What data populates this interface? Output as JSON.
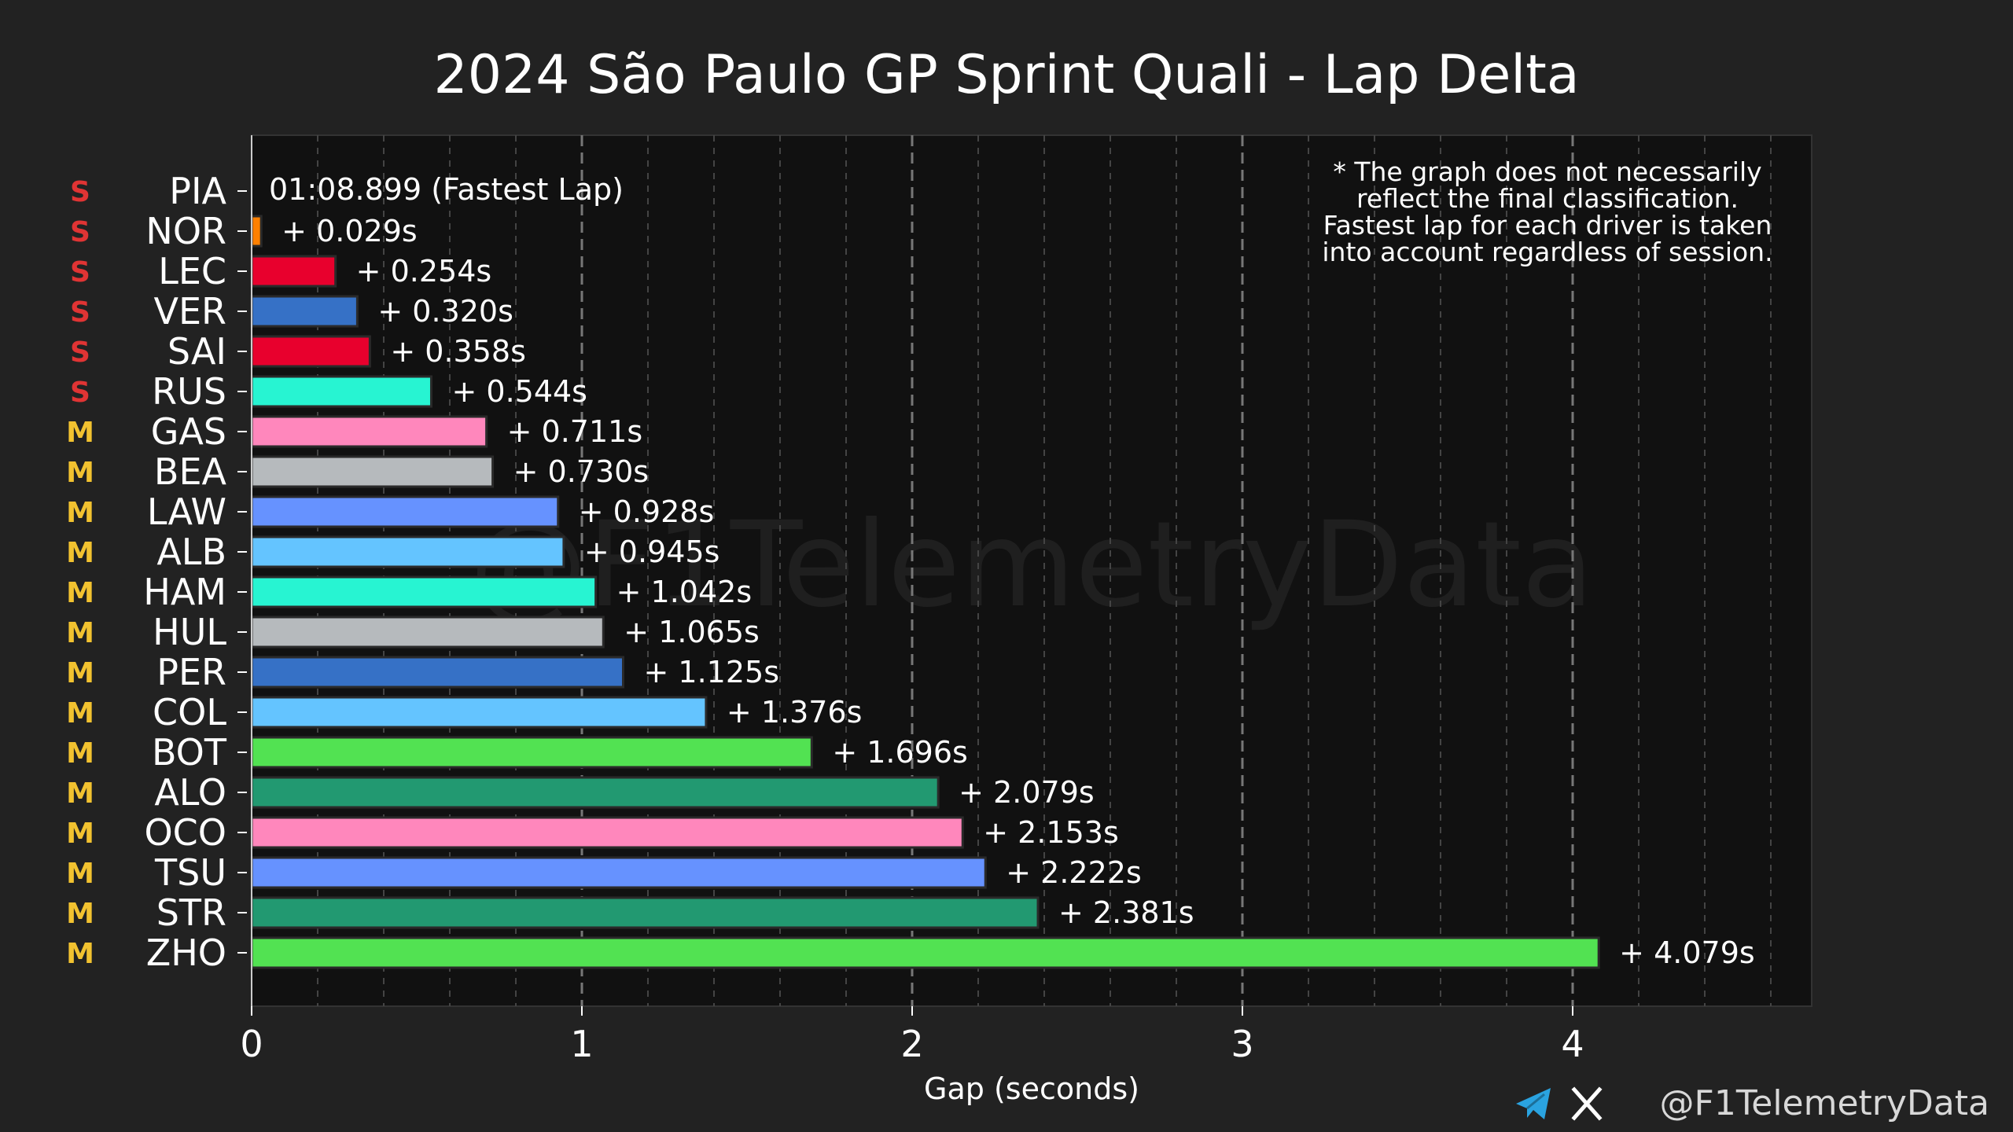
{
  "chart_data": {
    "type": "bar",
    "orientation": "horizontal",
    "title": "2024 São Paulo GP Sprint Quali - Lap Delta",
    "xlabel": "Gap (seconds)",
    "ylabel": "",
    "xlim": [
      0,
      4.72
    ],
    "x_ticks": [
      0,
      1,
      2,
      3,
      4
    ],
    "x_tick_labels": [
      "0",
      "1",
      "2",
      "3",
      "4"
    ],
    "grid": {
      "major_x": true,
      "minor_x": true,
      "style": "dashed"
    },
    "fastest_lap_label": "01:08.899 (Fastest Lap)",
    "note": [
      "* The graph does not necessarily",
      "reflect the final classification.",
      "Fastest lap for each driver is taken",
      "into account regardless of session."
    ],
    "watermark": "@F1TelemetryData",
    "credit": "@F1TelemetryData",
    "tyre_colors": {
      "S": "#e03434",
      "M": "#f2c230"
    },
    "drivers": [
      {
        "code": "PIA",
        "tyre": "S",
        "gap": 0.0,
        "label": "",
        "color": "#ff8000"
      },
      {
        "code": "NOR",
        "tyre": "S",
        "gap": 0.029,
        "label": "+ 0.029s",
        "color": "#ff8000"
      },
      {
        "code": "LEC",
        "tyre": "S",
        "gap": 0.254,
        "label": "+ 0.254s",
        "color": "#e8002d"
      },
      {
        "code": "VER",
        "tyre": "S",
        "gap": 0.32,
        "label": "+ 0.320s",
        "color": "#3671c6"
      },
      {
        "code": "SAI",
        "tyre": "S",
        "gap": 0.358,
        "label": "+ 0.358s",
        "color": "#e8002d"
      },
      {
        "code": "RUS",
        "tyre": "S",
        "gap": 0.544,
        "label": "+ 0.544s",
        "color": "#27f4d2"
      },
      {
        "code": "GAS",
        "tyre": "M",
        "gap": 0.711,
        "label": "+ 0.711s",
        "color": "#ff87bc"
      },
      {
        "code": "BEA",
        "tyre": "M",
        "gap": 0.73,
        "label": "+ 0.730s",
        "color": "#b6babd"
      },
      {
        "code": "LAW",
        "tyre": "M",
        "gap": 0.928,
        "label": "+ 0.928s",
        "color": "#6692ff"
      },
      {
        "code": "ALB",
        "tyre": "M",
        "gap": 0.945,
        "label": "+ 0.945s",
        "color": "#64c4ff"
      },
      {
        "code": "HAM",
        "tyre": "M",
        "gap": 1.042,
        "label": "+ 1.042s",
        "color": "#27f4d2"
      },
      {
        "code": "HUL",
        "tyre": "M",
        "gap": 1.065,
        "label": "+ 1.065s",
        "color": "#b6babd"
      },
      {
        "code": "PER",
        "tyre": "M",
        "gap": 1.125,
        "label": "+ 1.125s",
        "color": "#3671c6"
      },
      {
        "code": "COL",
        "tyre": "M",
        "gap": 1.376,
        "label": "+ 1.376s",
        "color": "#64c4ff"
      },
      {
        "code": "BOT",
        "tyre": "M",
        "gap": 1.696,
        "label": "+ 1.696s",
        "color": "#52e252"
      },
      {
        "code": "ALO",
        "tyre": "M",
        "gap": 2.079,
        "label": "+ 2.079s",
        "color": "#229971"
      },
      {
        "code": "OCO",
        "tyre": "M",
        "gap": 2.153,
        "label": "+ 2.153s",
        "color": "#ff87bc"
      },
      {
        "code": "TSU",
        "tyre": "M",
        "gap": 2.222,
        "label": "+ 2.222s",
        "color": "#6692ff"
      },
      {
        "code": "STR",
        "tyre": "M",
        "gap": 2.381,
        "label": "+ 2.381s",
        "color": "#229971"
      },
      {
        "code": "ZHO",
        "tyre": "M",
        "gap": 4.079,
        "label": "+ 4.079s",
        "color": "#52e252"
      }
    ]
  }
}
